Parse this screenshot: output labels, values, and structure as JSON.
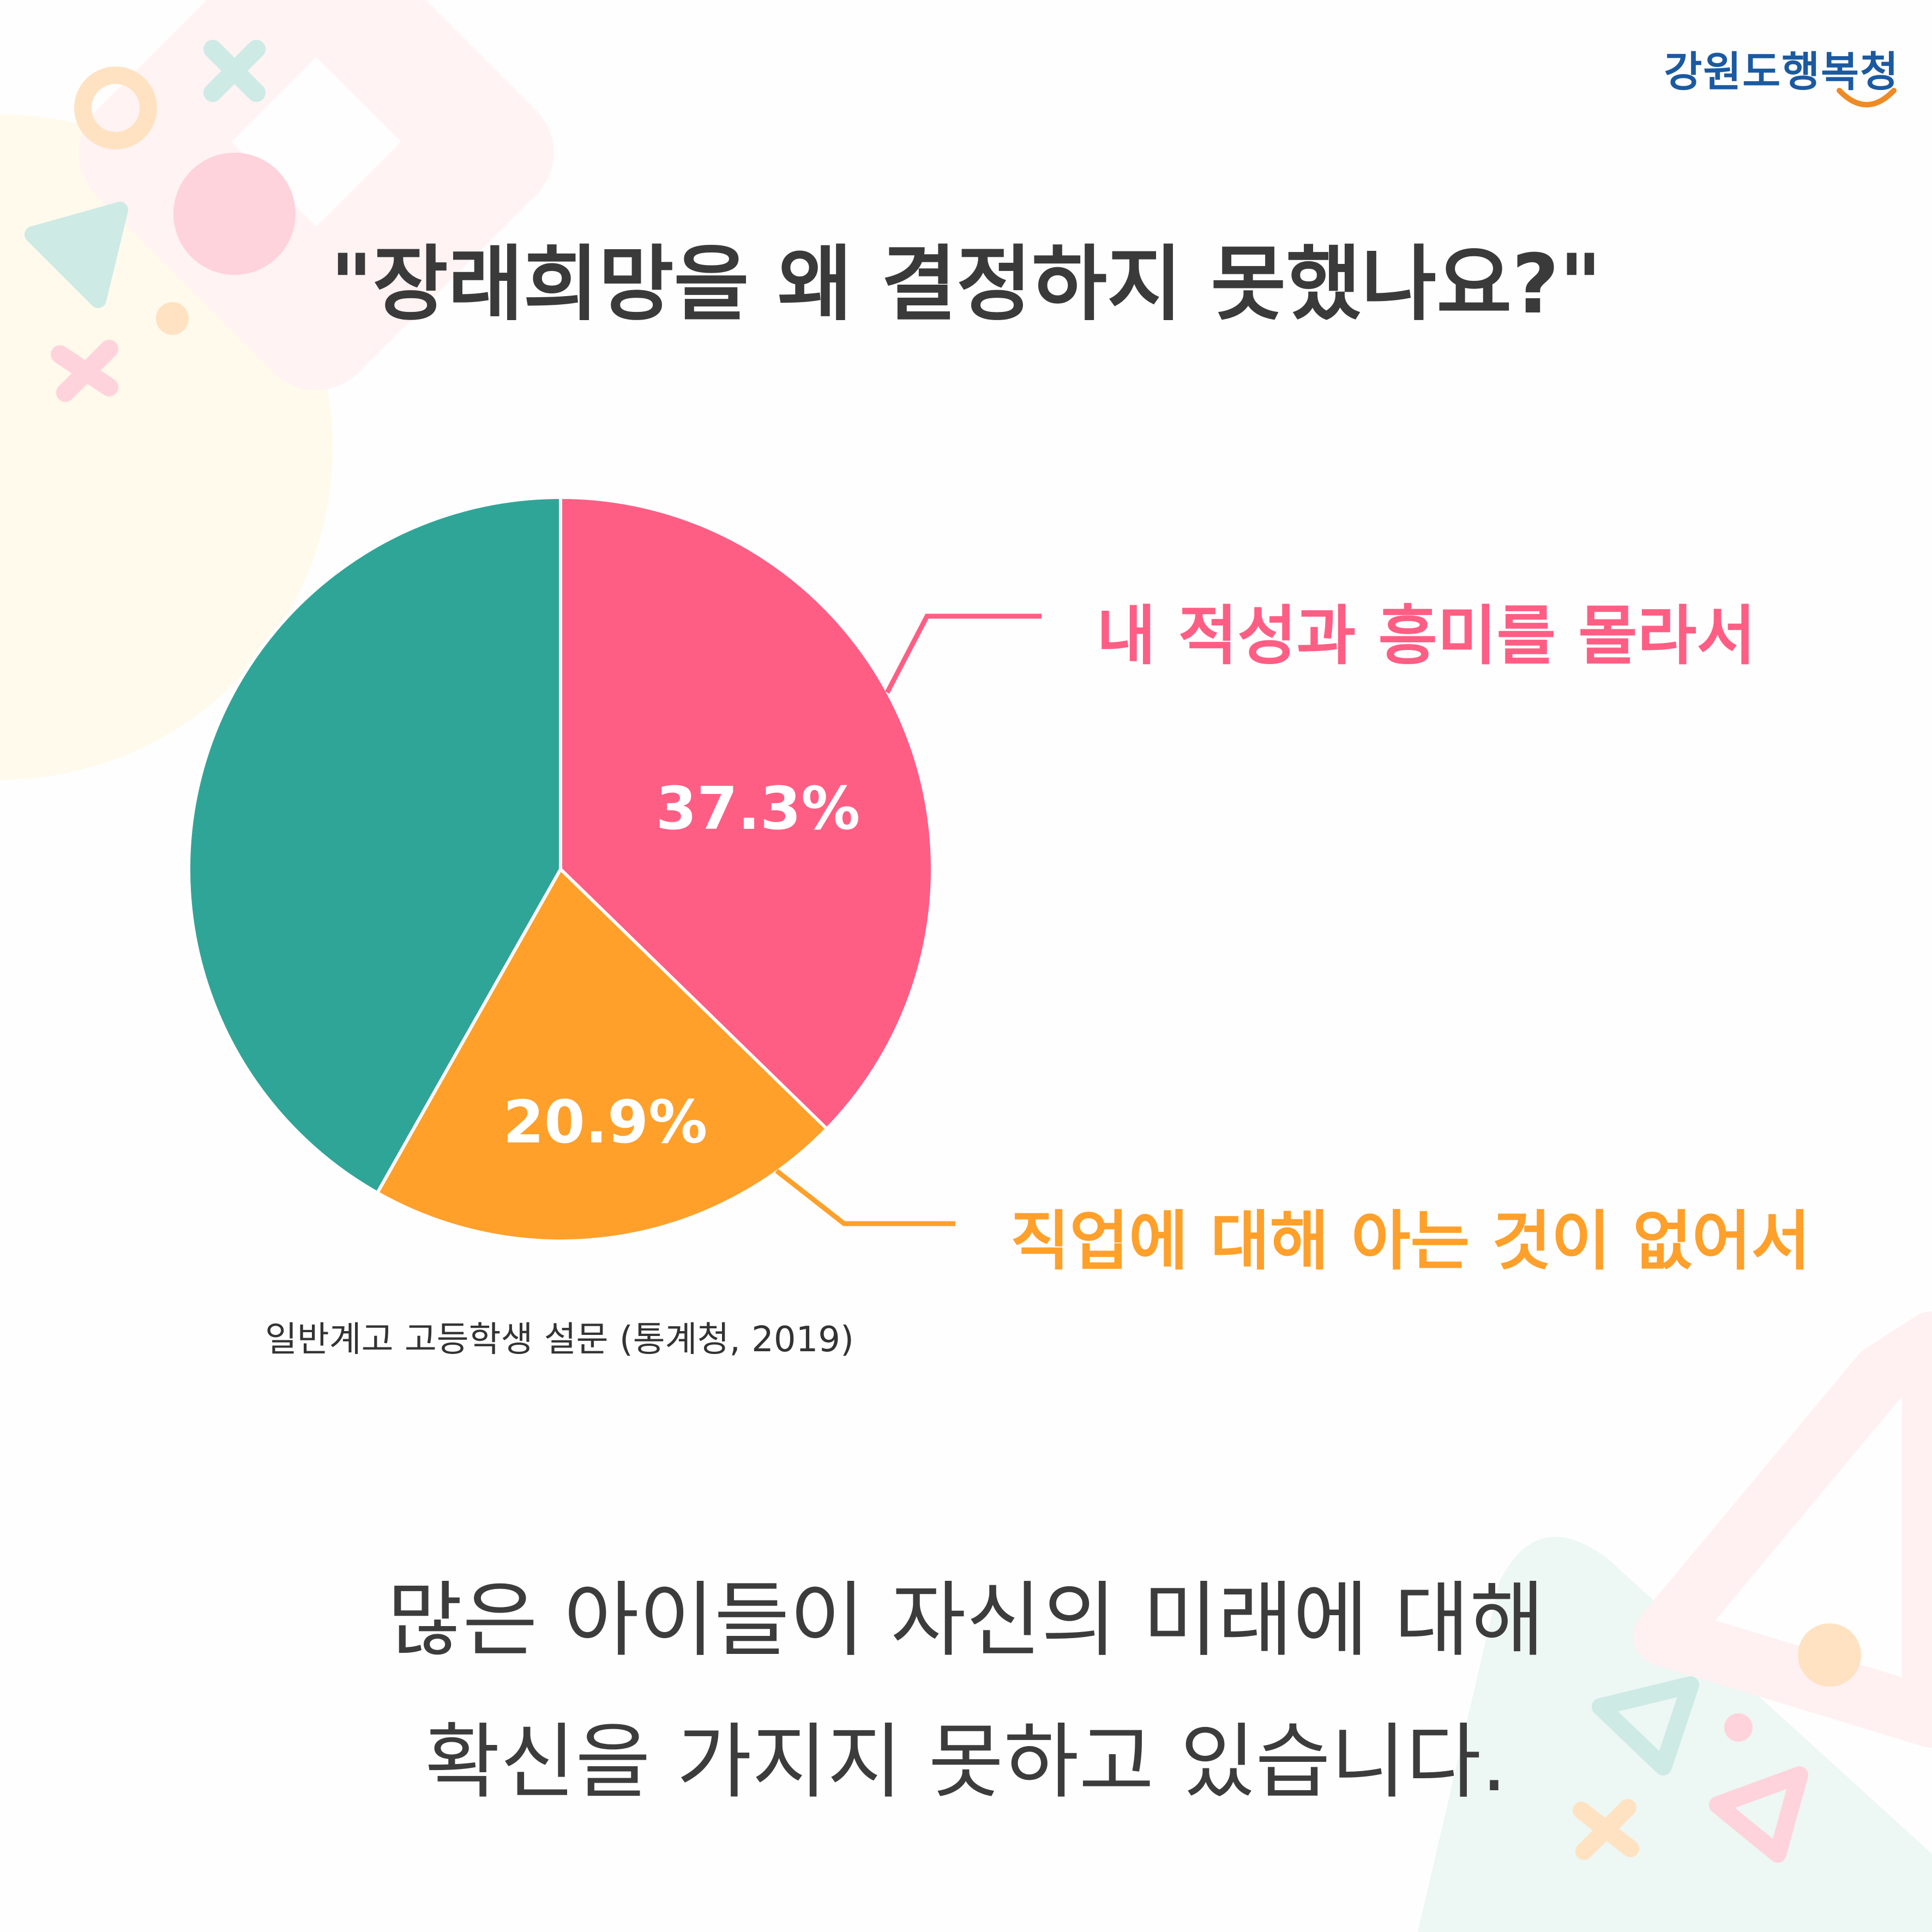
{
  "logo": {
    "text": "강원도행복청"
  },
  "colors": {
    "pink": "#FF5E84",
    "orange": "#FFA02B",
    "teal": "#2FA598",
    "text": "#3C3C3C",
    "logo_blue": "#1B5AA0",
    "logo_orange": "#F08A24"
  },
  "chart_data": {
    "type": "pie",
    "title": "\"장래희망을 왜 결정하지 못했나요?\"",
    "start": "top",
    "direction": "clockwise",
    "slices": [
      {
        "label": "내 적성과 흥미를 몰라서",
        "value": 37.3,
        "data_label": "37.3%",
        "color": "#FF5E84"
      },
      {
        "label": "직업에 대해 아는 것이 없어서",
        "value": 20.9,
        "data_label": "20.9%",
        "color": "#FFA02B"
      },
      {
        "label": "",
        "value": 41.8,
        "data_label": "",
        "color": "#2FA598"
      }
    ],
    "source": "일반계고 고등학생 설문 (통계청, 2019)"
  },
  "footer": {
    "line1": "많은 아이들이 자신의 미래에 대해",
    "line2": "확신을 가지지 못하고 있습니다."
  }
}
